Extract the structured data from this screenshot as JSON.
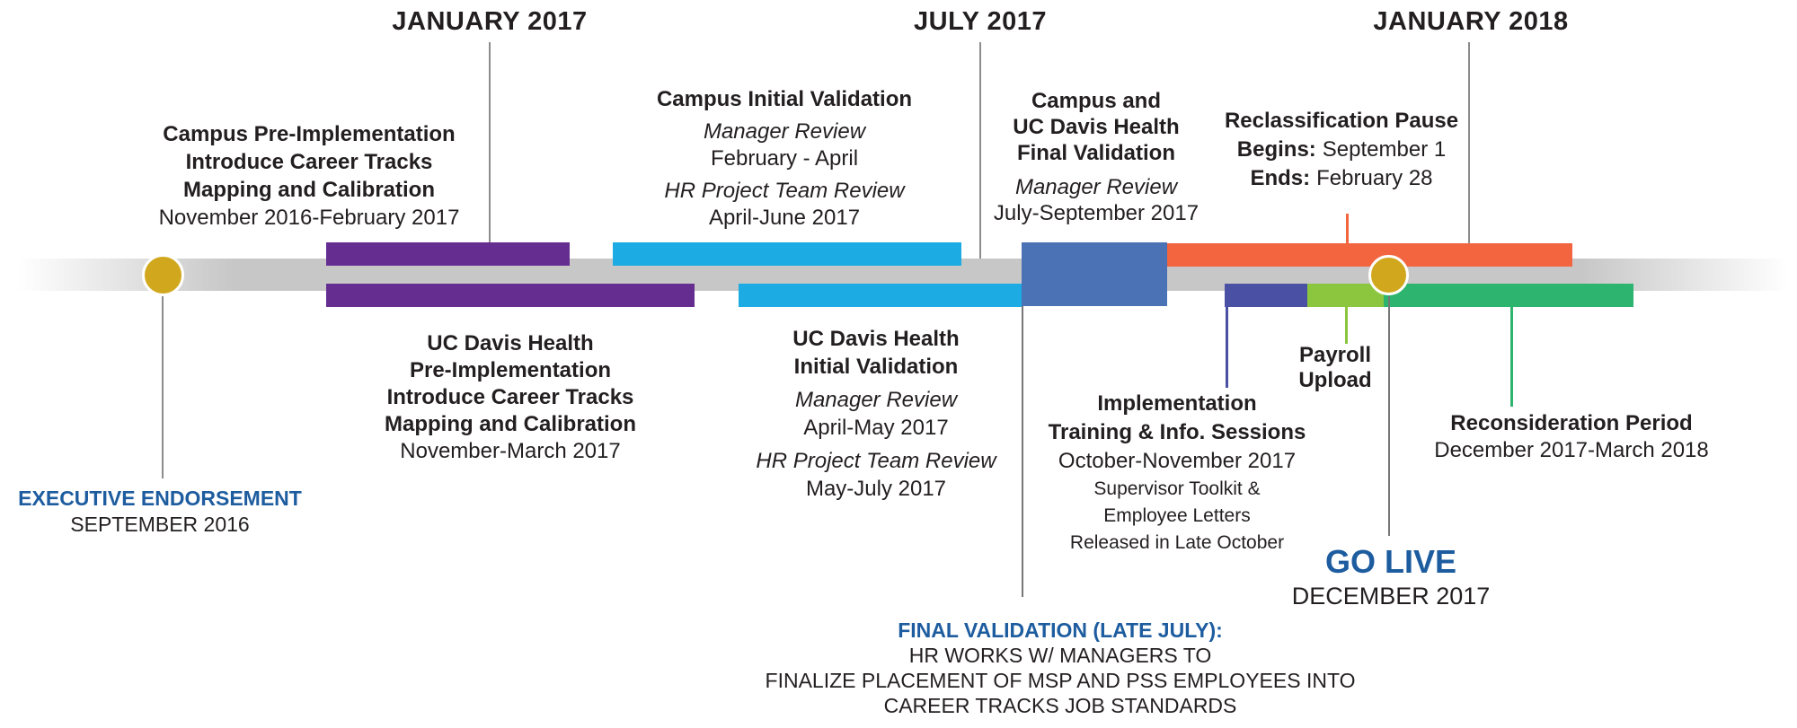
{
  "colors": {
    "purple": "#662d91",
    "cyan": "#1cabe3",
    "steel_blue": "#4a72b5",
    "orange": "#f2653f",
    "indigo": "#4a51a5",
    "lime": "#8cc63f",
    "green": "#2db46e",
    "gold": "#d1a81d",
    "band_gray": "#c7c7c8",
    "stem_gray": "#8c8c8c",
    "stem_dark_gray": "#767676",
    "heading_blue": "#1d5c9f",
    "text_dark": "#231f20"
  },
  "dates": {
    "jan2017": {
      "label": "JANUARY 2017"
    },
    "jul2017": {
      "label": "JULY 2017"
    },
    "jan2018": {
      "label": "JANUARY 2018"
    }
  },
  "blocks": {
    "campus_pre": {
      "l1": "Campus Pre-Implementation",
      "l2": "Introduce Career Tracks",
      "l3": "Mapping and Calibration",
      "date": "November 2016-February 2017"
    },
    "ucdh_pre": {
      "l1": "UC Davis Health",
      "l2": "Pre-Implementation",
      "l3": "Introduce Career Tracks",
      "l4": "Mapping and Calibration",
      "date": "November-March 2017"
    },
    "campus_initial": {
      "title": "Campus Initial Validation",
      "review1_label": "Manager Review",
      "review1_date": "February - April",
      "review2_label": "HR Project Team Review",
      "review2_date": "April-June 2017"
    },
    "ucdh_initial": {
      "title1": "UC Davis Health",
      "title2": "Initial Validation",
      "review1_label": "Manager Review",
      "review1_date": "April-May 2017",
      "review2_label": "HR Project Team Review",
      "review2_date": "May-July 2017"
    },
    "final_validation": {
      "title1": "Campus and",
      "title2": "UC Davis Health",
      "title3": "Final Validation",
      "review_label": "Manager Review",
      "review_date": "July-September 2017"
    },
    "reclassification": {
      "title": "Reclassification Pause",
      "begins_label": "Begins:",
      "begins_value": "September 1",
      "ends_label": "Ends:",
      "ends_value": "February 28"
    },
    "implementation": {
      "l1": "Implementation",
      "l2": "Training & Info. Sessions",
      "date": "October-November 2017",
      "s1": "Supervisor Toolkit &",
      "s2": "Employee Letters",
      "s3": "Released in Late October"
    },
    "payroll": {
      "l1": "Payroll",
      "l2": "Upload"
    },
    "reconsideration": {
      "title": "Reconsideration Period",
      "date": "December 2017-March 2018"
    },
    "executive": {
      "title": "EXECUTIVE ENDORSEMENT",
      "date": "SEPTEMBER 2016"
    },
    "go_live": {
      "title": "GO LIVE",
      "date": "DECEMBER 2017"
    },
    "final_validation_note": {
      "title": "FINAL VALIDATION (LATE JULY):",
      "l1": "HR WORKS W/ MANAGERS TO",
      "l2": "FINALIZE PLACEMENT OF MSP AND PSS EMPLOYEES INTO",
      "l3": "CAREER TRACKS JOB STANDARDS"
    }
  }
}
